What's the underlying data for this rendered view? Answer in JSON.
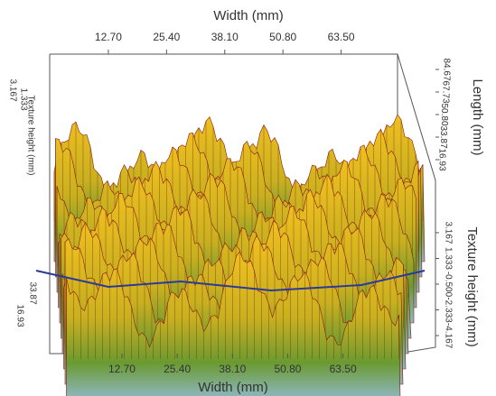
{
  "chart_data": {
    "type": "surface3d",
    "x_label": "Width (mm)",
    "xlim": [
      0,
      76.2
    ],
    "xticks": [
      {
        "value": 12.7,
        "label": "12.70"
      },
      {
        "value": 25.4,
        "label": "25.40"
      },
      {
        "value": 38.1,
        "label": "38.10"
      },
      {
        "value": 50.8,
        "label": "50.80"
      },
      {
        "value": 63.5,
        "label": "63.50"
      }
    ],
    "y_label": "Length (mm)",
    "ylim": [
      0,
      101.6
    ],
    "yticks": [
      16.93,
      33.87,
      {
        "value": 50.8,
        "label": "50.80"
      },
      67.73,
      84.67
    ],
    "z_label": "Texture height (mm)",
    "zlim": [
      -5,
      4
    ],
    "zticks": [
      -4.167,
      -2.333,
      {
        "value": -0.5,
        "label": "-0.500"
      },
      1.333,
      3.167
    ]
  }
}
